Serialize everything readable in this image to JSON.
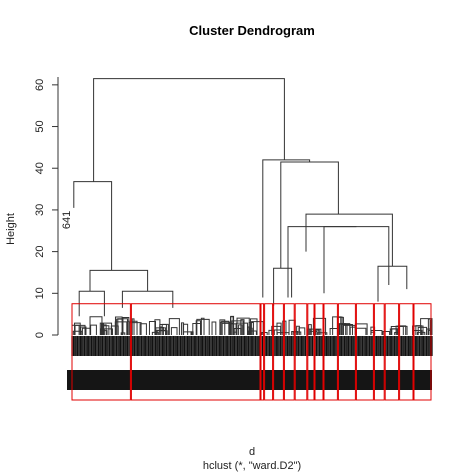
{
  "chart_data": {
    "type": "dendrogram",
    "title": "Cluster Dendrogram",
    "ylabel": "Height",
    "xlabel": "d",
    "sublabel": "hclust (*, \"ward.D2\")",
    "ylim": [
      0,
      65
    ],
    "yticks": [
      0,
      10,
      20,
      30,
      40,
      50,
      60
    ],
    "visible_leaf_labels": [
      "641"
    ],
    "merges": [
      {
        "x1": 0.1,
        "x2": 0.61,
        "height": 61.5
      },
      {
        "x1": 0.18,
        "x2": 0.26,
        "height": 42.0
      },
      {
        "x1": 0.3,
        "x2": 0.42,
        "height": 41.5
      },
      {
        "x1": 0.75,
        "x2": 0.88,
        "height": 36.8
      },
      {
        "x1": 0.83,
        "x2": 0.93,
        "height": 29.0
      },
      {
        "x1": 0.16,
        "x2": 0.3,
        "height": 15.5
      },
      {
        "x1": 0.04,
        "x2": 0.1,
        "height": 7.5
      },
      {
        "x1": 0.38,
        "x2": 0.48,
        "height": 10.0
      },
      {
        "x1": 0.56,
        "x2": 0.83,
        "height": 14.0
      }
    ],
    "cluster_boxes": 16,
    "box_color": "#e00000",
    "line_color": "#333333"
  }
}
